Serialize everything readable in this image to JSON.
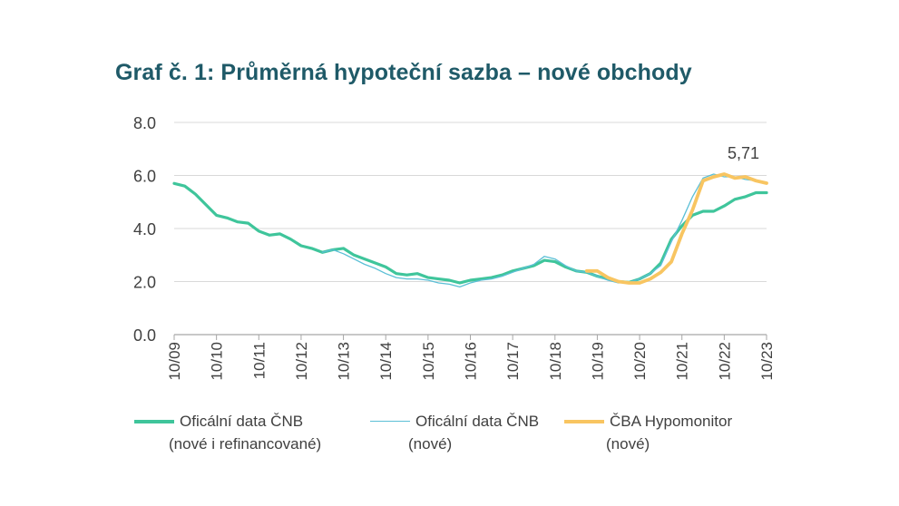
{
  "title": "Graf č. 1: Průměrná hypoteční sazba – nové obchody",
  "colors": {
    "cnb_all": "#3fc59b",
    "cnb_new": "#5bbfd6",
    "cba": "#f8c561",
    "grid": "#d9d9d9",
    "title": "#1f5a68"
  },
  "legend": [
    {
      "line1": "Oficální data ČNB",
      "line2": "(nové i refinancované)"
    },
    {
      "line1": "Oficální data ČNB",
      "line2": "(nové)"
    },
    {
      "line1": "ČBA Hypomonitor",
      "line2": "(nové)"
    }
  ],
  "chart_data": {
    "type": "line",
    "title": "Graf č. 1: Průměrná hypoteční sazba – nové obchody",
    "ylim": [
      0,
      8
    ],
    "yticks": [
      "0.0",
      "2.0",
      "4.0",
      "6.0",
      "8.0"
    ],
    "xlim": [
      2009.75,
      2023.75
    ],
    "xticks": [
      "10/09",
      "10/10",
      "10/11",
      "10/12",
      "10/13",
      "10/14",
      "10/15",
      "10/16",
      "10/17",
      "10/18",
      "10/19",
      "10/20",
      "10/21",
      "10/22",
      "10/23"
    ],
    "grid": true,
    "legend_position": "bottom",
    "annotation": {
      "text": "5,71",
      "x": 2023.75,
      "y": 5.71
    },
    "series": [
      {
        "name": "Oficální data ČNB (nové i refinancované)",
        "x": [
          2009.75,
          2010.0,
          2010.25,
          2010.5,
          2010.75,
          2011.0,
          2011.25,
          2011.5,
          2011.75,
          2012.0,
          2012.25,
          2012.5,
          2012.75,
          2013.0,
          2013.25,
          2013.5,
          2013.75,
          2014.0,
          2014.25,
          2014.5,
          2014.75,
          2015.0,
          2015.25,
          2015.5,
          2015.75,
          2016.0,
          2016.25,
          2016.5,
          2016.75,
          2017.0,
          2017.25,
          2017.5,
          2017.75,
          2018.0,
          2018.25,
          2018.5,
          2018.75,
          2019.0,
          2019.25,
          2019.5,
          2019.75,
          2020.0,
          2020.25,
          2020.5,
          2020.75,
          2021.0,
          2021.25,
          2021.5,
          2021.75,
          2022.0,
          2022.25,
          2022.5,
          2022.75,
          2023.0,
          2023.25,
          2023.5,
          2023.75
        ],
        "values": [
          5.7,
          5.6,
          5.3,
          4.9,
          4.5,
          4.4,
          4.25,
          4.2,
          3.9,
          3.75,
          3.8,
          3.6,
          3.35,
          3.25,
          3.1,
          3.2,
          3.25,
          3.0,
          2.85,
          2.7,
          2.55,
          2.3,
          2.25,
          2.3,
          2.15,
          2.1,
          2.05,
          1.95,
          2.05,
          2.1,
          2.15,
          2.25,
          2.4,
          2.5,
          2.6,
          2.8,
          2.75,
          2.55,
          2.4,
          2.35,
          2.2,
          2.1,
          2.0,
          1.97,
          2.1,
          2.3,
          2.7,
          3.6,
          4.1,
          4.5,
          4.65,
          4.65,
          4.85,
          5.1,
          5.2,
          5.35,
          5.35
        ]
      },
      {
        "name": "Oficální data ČNB (nové)",
        "x": [
          2013.25,
          2013.5,
          2013.75,
          2014.0,
          2014.25,
          2014.5,
          2014.75,
          2015.0,
          2015.25,
          2015.5,
          2015.75,
          2016.0,
          2016.25,
          2016.5,
          2016.75,
          2017.0,
          2017.25,
          2017.5,
          2017.75,
          2018.0,
          2018.25,
          2018.5,
          2018.75,
          2019.0,
          2019.25,
          2019.5,
          2019.75,
          2020.0,
          2020.25,
          2020.5,
          2020.75,
          2021.0,
          2021.25,
          2021.5,
          2021.75,
          2022.0,
          2022.25,
          2022.5,
          2022.75,
          2023.0,
          2023.25,
          2023.5,
          2023.75
        ],
        "values": [
          3.1,
          3.2,
          3.05,
          2.85,
          2.65,
          2.5,
          2.3,
          2.15,
          2.1,
          2.1,
          2.05,
          1.95,
          1.9,
          1.8,
          1.95,
          2.05,
          2.1,
          2.2,
          2.35,
          2.5,
          2.65,
          2.95,
          2.85,
          2.6,
          2.4,
          2.35,
          2.2,
          2.05,
          1.95,
          1.97,
          2.1,
          2.3,
          2.6,
          3.5,
          4.3,
          5.2,
          5.9,
          6.05,
          5.95,
          5.95,
          5.85,
          5.8,
          5.7
        ]
      },
      {
        "name": "ČBA Hypomonitor (nové)",
        "x": [
          2019.5,
          2019.75,
          2020.0,
          2020.25,
          2020.5,
          2020.75,
          2021.0,
          2021.25,
          2021.5,
          2021.75,
          2022.0,
          2022.25,
          2022.5,
          2022.75,
          2023.0,
          2023.25,
          2023.5,
          2023.75
        ],
        "values": [
          2.4,
          2.4,
          2.15,
          2.0,
          1.95,
          1.95,
          2.1,
          2.35,
          2.75,
          3.8,
          4.7,
          5.8,
          5.95,
          6.05,
          5.9,
          5.95,
          5.8,
          5.71
        ]
      }
    ]
  }
}
